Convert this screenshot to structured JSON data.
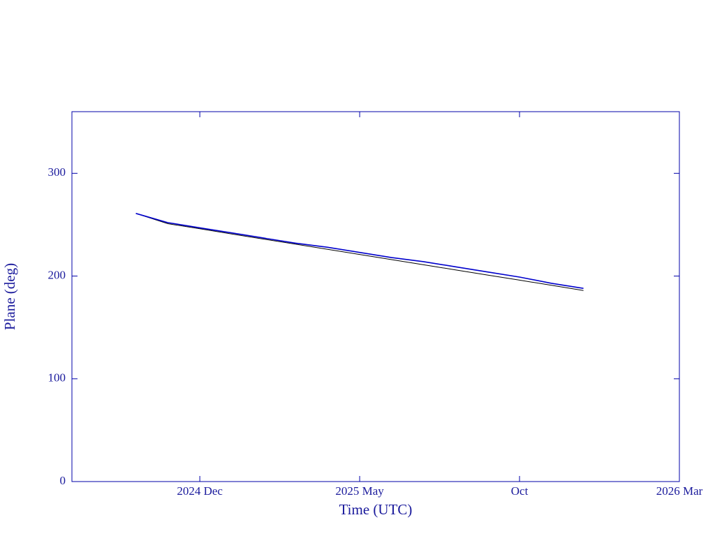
{
  "chart_data": {
    "type": "line",
    "x_label": "Time (UTC)",
    "y_label": "Plane (deg)",
    "x": [
      "2024-10",
      "2024-11",
      "2024-12",
      "2025-01",
      "2025-02",
      "2025-03",
      "2025-04",
      "2025-05",
      "2025-06",
      "2025-07",
      "2025-08",
      "2025-09",
      "2025-10",
      "2025-11",
      "2025-12"
    ],
    "series": [
      {
        "color": "#000000",
        "values": [
          261,
          251,
          246,
          241,
          236,
          231,
          226,
          221,
          216,
          211,
          206,
          201,
          196,
          191,
          186
        ]
      },
      {
        "color": "#0000cc",
        "values": [
          261,
          252,
          247,
          242,
          237,
          232,
          228,
          223,
          218,
          214,
          209,
          204,
          199,
          193,
          188
        ]
      }
    ],
    "xlim": [
      "2024-08",
      "2026-03"
    ],
    "xticks": [
      {
        "value": "2024-12",
        "label": "2024 Dec"
      },
      {
        "value": "2025-05",
        "label": "2025 May"
      },
      {
        "value": "2025-10",
        "label": "Oct"
      },
      {
        "value": "2026-03",
        "label": "2026 Mar"
      }
    ],
    "ylim": [
      0,
      360
    ],
    "yticks": [
      0,
      100,
      200,
      300
    ],
    "axis_color": "#0000aa"
  }
}
